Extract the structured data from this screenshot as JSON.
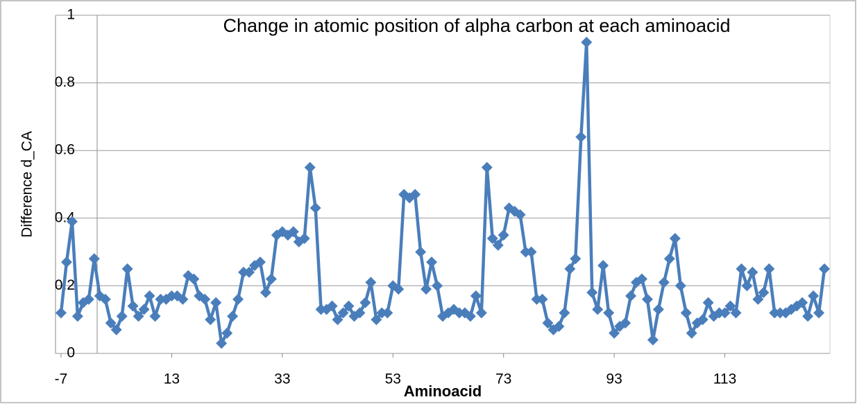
{
  "chart_data": {
    "type": "line",
    "title": "Change in atomic position of alpha carbon at each aminoacid",
    "x_label": "Aminoacid",
    "y_label": "Difference d_CA",
    "x": [
      -7,
      -6,
      -5,
      -4,
      -3,
      -2,
      -1,
      0,
      1,
      2,
      3,
      4,
      5,
      6,
      7,
      8,
      9,
      10,
      11,
      12,
      13,
      14,
      15,
      16,
      17,
      18,
      19,
      20,
      21,
      22,
      23,
      24,
      25,
      26,
      27,
      28,
      29,
      30,
      31,
      32,
      33,
      34,
      35,
      36,
      37,
      38,
      39,
      40,
      41,
      42,
      43,
      44,
      45,
      46,
      47,
      48,
      49,
      50,
      51,
      52,
      53,
      54,
      55,
      56,
      57,
      58,
      59,
      60,
      61,
      62,
      63,
      64,
      65,
      66,
      67,
      68,
      69,
      70,
      71,
      72,
      73,
      74,
      75,
      76,
      77,
      78,
      79,
      80,
      81,
      82,
      83,
      84,
      85,
      86,
      87,
      88,
      89,
      90,
      91,
      92,
      93,
      94,
      95,
      96,
      97,
      98,
      99,
      100,
      101,
      102,
      103,
      104,
      105,
      106,
      107,
      108,
      109,
      110,
      111,
      112,
      113,
      114,
      115,
      116,
      117,
      118,
      119,
      120,
      121,
      122,
      123,
      124,
      125,
      126,
      127,
      128,
      129,
      130,
      131
    ],
    "series": [
      {
        "name": "Difference d_CA",
        "color": "#4a7ebb",
        "values": [
          0.12,
          0.27,
          0.39,
          0.11,
          0.15,
          0.16,
          0.28,
          0.17,
          0.16,
          0.09,
          0.07,
          0.11,
          0.25,
          0.14,
          0.11,
          0.13,
          0.17,
          0.11,
          0.16,
          0.16,
          0.17,
          0.17,
          0.16,
          0.23,
          0.22,
          0.17,
          0.16,
          0.1,
          0.15,
          0.03,
          0.06,
          0.11,
          0.16,
          0.24,
          0.24,
          0.26,
          0.27,
          0.18,
          0.22,
          0.35,
          0.36,
          0.35,
          0.36,
          0.33,
          0.34,
          0.55,
          0.43,
          0.13,
          0.13,
          0.14,
          0.1,
          0.12,
          0.14,
          0.11,
          0.12,
          0.15,
          0.21,
          0.1,
          0.12,
          0.12,
          0.2,
          0.19,
          0.47,
          0.46,
          0.47,
          0.3,
          0.19,
          0.27,
          0.2,
          0.11,
          0.12,
          0.13,
          0.12,
          0.12,
          0.11,
          0.17,
          0.12,
          0.55,
          0.34,
          0.32,
          0.35,
          0.43,
          0.42,
          0.41,
          0.3,
          0.3,
          0.16,
          0.16,
          0.09,
          0.07,
          0.08,
          0.12,
          0.25,
          0.28,
          0.64,
          0.92,
          0.18,
          0.13,
          0.26,
          0.12,
          0.06,
          0.08,
          0.09,
          0.17,
          0.21,
          0.22,
          0.16,
          0.04,
          0.13,
          0.21,
          0.28,
          0.34,
          0.2,
          0.12,
          0.06,
          0.09,
          0.1,
          0.15,
          0.11,
          0.12,
          0.12,
          0.14,
          0.12,
          0.25,
          0.2,
          0.24,
          0.16,
          0.18,
          0.25,
          0.12,
          0.12,
          0.12,
          0.13,
          0.14,
          0.15,
          0.11,
          0.17,
          0.12,
          0.25
        ]
      }
    ],
    "xlim": [
      -8,
      132
    ],
    "xticks": [
      -7,
      13,
      33,
      53,
      73,
      93,
      113
    ],
    "ylim": [
      0,
      1
    ],
    "yticks": [
      0,
      0.2,
      0.4,
      0.6,
      0.8,
      1
    ],
    "grid": true
  }
}
